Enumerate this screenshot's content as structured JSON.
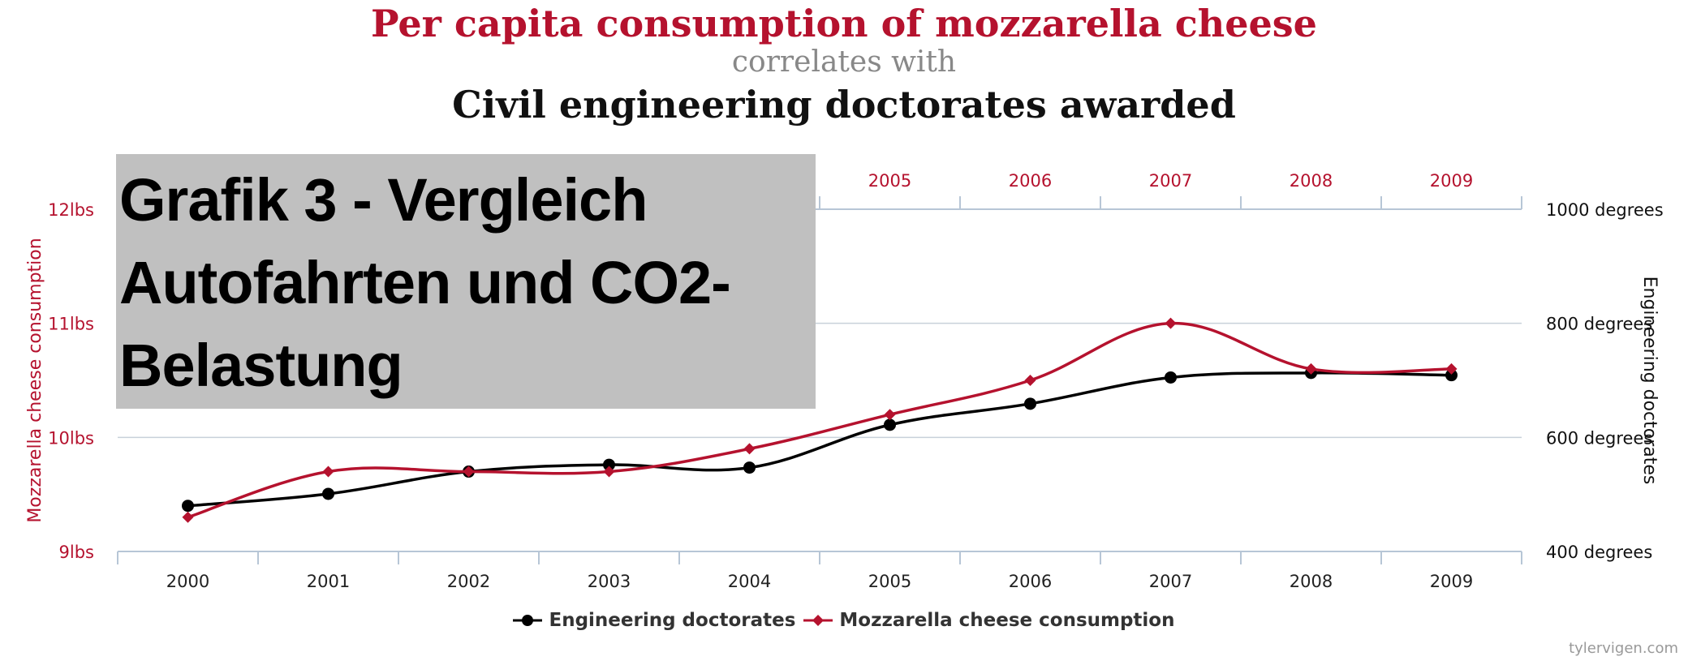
{
  "header": {
    "title": "Per capita consumption of mozzarella cheese",
    "connector": "correlates with",
    "subtitle": "Civil engineering doctorates awarded"
  },
  "overlay": {
    "text": "Grafik 3 - Vergleich Autofahrten und CO2-Belastung"
  },
  "credit": "tylervigen.com",
  "colors": {
    "red": "#b5122e",
    "black": "#000000",
    "grid": "#c8d1da"
  },
  "chart_data": {
    "type": "line",
    "categories": [
      "2000",
      "2001",
      "2002",
      "2003",
      "2004",
      "2005",
      "2006",
      "2007",
      "2008",
      "2009"
    ],
    "series": [
      {
        "name": "Engineering doctorates",
        "axis": "right",
        "color": "#000000",
        "marker": "circle",
        "values": [
          480,
          501,
          540,
          552,
          547,
          622,
          659,
          705,
          713,
          709
        ]
      },
      {
        "name": "Mozzarella cheese consumption",
        "axis": "left",
        "color": "#b5122e",
        "marker": "diamond",
        "values": [
          9.3,
          9.7,
          9.7,
          9.7,
          9.9,
          10.2,
          10.5,
          11.0,
          10.6,
          10.6
        ]
      }
    ],
    "left_axis": {
      "label": "Mozzarella cheese consumption",
      "range": [
        9,
        12
      ],
      "ticks": [
        {
          "value": 9,
          "label": "9lbs"
        },
        {
          "value": 10,
          "label": "10lbs"
        },
        {
          "value": 11,
          "label": "11lbs"
        },
        {
          "value": 12,
          "label": "12lbs"
        }
      ]
    },
    "right_axis": {
      "label": "Engineering doctorates",
      "range": [
        400,
        1000
      ],
      "ticks": [
        {
          "value": 400,
          "label": "400 degrees"
        },
        {
          "value": 600,
          "label": "600 degrees"
        },
        {
          "value": 800,
          "label": "800 degrees"
        },
        {
          "value": 1000,
          "label": "1000 degrees"
        }
      ]
    },
    "top_axis_visible_labels": [
      "2005",
      "2006",
      "2007",
      "2008",
      "2009"
    ],
    "grid": true,
    "legend_position": "bottom-center"
  }
}
